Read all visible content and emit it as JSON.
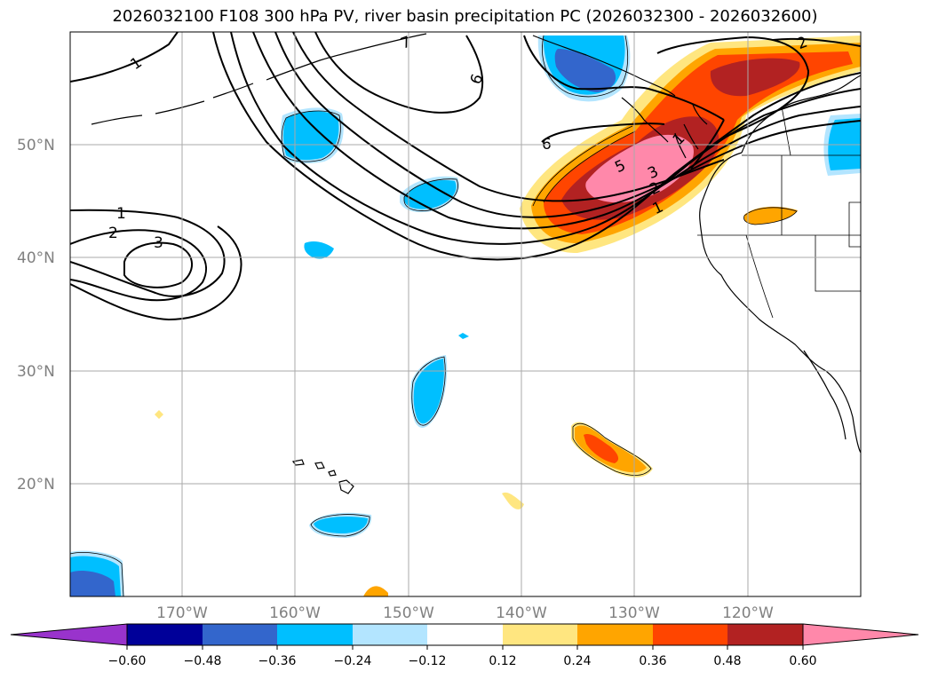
{
  "title": "2026032100 F108 300 hPa PV, river basin precipitation PC (2026032300 - 2026032600)",
  "map": {
    "lat_labels": [
      "50°N",
      "40°N",
      "30°N",
      "20°N"
    ],
    "lon_labels": [
      "170°W",
      "160°W",
      "150°W",
      "140°W",
      "130°W",
      "120°W"
    ],
    "contour_labels": [
      "1",
      "2",
      "3",
      "1",
      "6",
      "7",
      "1",
      "6",
      "5",
      "3",
      "2",
      "1",
      "2"
    ]
  },
  "colorbar": {
    "ticks": [
      "−0.60",
      "−0.48",
      "−0.36",
      "−0.24",
      "−0.12",
      "0.12",
      "0.24",
      "0.36",
      "0.48",
      "0.60"
    ],
    "colors": [
      "#9933cc",
      "#000099",
      "#3366cc",
      "#00bfff",
      "#b3e5ff",
      "#ffffff",
      "#ffe680",
      "#ffa500",
      "#ff4500",
      "#b22222",
      "#ff88aa"
    ]
  },
  "chart_data": {
    "type": "heatmap",
    "title": "2026032100 F108 300 hPa PV, river basin precipitation PC (2026032300 - 2026032600)",
    "xlabel": "",
    "ylabel": "",
    "x_ticks": [
      "170°W",
      "160°W",
      "150°W",
      "140°W",
      "130°W",
      "120°W"
    ],
    "y_ticks": [
      "50°N",
      "40°N",
      "30°N",
      "20°N"
    ],
    "colorbar_levels": [
      -0.6,
      -0.48,
      -0.36,
      -0.24,
      -0.12,
      0.12,
      0.24,
      0.36,
      0.48,
      0.6
    ],
    "pv_contour_levels_labeled": [
      1,
      2,
      3,
      5,
      6,
      7
    ],
    "grid": true
  }
}
